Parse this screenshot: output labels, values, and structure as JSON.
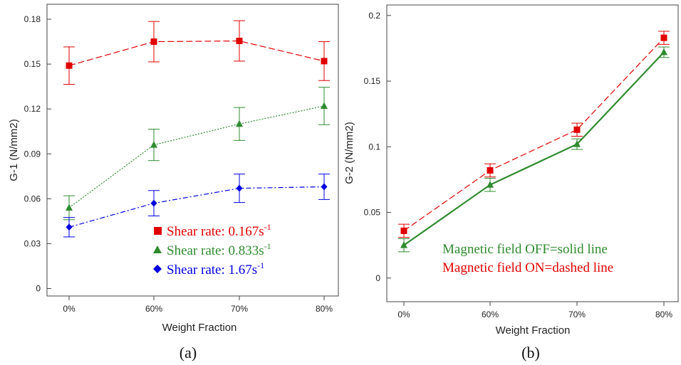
{
  "chart_data": [
    {
      "type": "line",
      "panel_label": "(a)",
      "categories": [
        "0%",
        "60%",
        "70%",
        "80%"
      ],
      "xlabel": "Weight Fraction",
      "ylabel": "G-1 (N/mm2)",
      "ylim": [
        -0.005,
        0.19
      ],
      "yticks": [
        "0",
        "0.03",
        "0.06",
        "0.09",
        "0.12",
        "0.15",
        "0.18"
      ],
      "grid": false,
      "legend_position": "bottom-right",
      "series": [
        {
          "name": "Shear rate: 0.167s",
          "superscript": "-1",
          "color": "#e00000",
          "marker": "square",
          "line": "dashed",
          "values": [
            0.149,
            0.165,
            0.1655,
            0.152
          ],
          "errors": [
            0.0125,
            0.0135,
            0.0135,
            0.013
          ]
        },
        {
          "name": "Shear rate: 0.833s",
          "superscript": "-1",
          "color": "#2e8b2e",
          "marker": "triangle",
          "line": "dotted",
          "values": [
            0.054,
            0.096,
            0.11,
            0.122
          ],
          "errors": [
            0.008,
            0.0105,
            0.011,
            0.0125
          ]
        },
        {
          "name": "Shear rate: 1.67s",
          "superscript": "-1",
          "color": "#0000e0",
          "marker": "diamond",
          "line": "dashdot",
          "values": [
            0.041,
            0.057,
            0.067,
            0.068
          ],
          "errors": [
            0.0065,
            0.0085,
            0.0095,
            0.0085
          ]
        }
      ]
    },
    {
      "type": "line",
      "panel_label": "(b)",
      "categories": [
        "0%",
        "60%",
        "70%",
        "80%"
      ],
      "xlabel": "Weight Fraction",
      "ylabel": "G-2 (N/mm2)",
      "ylim": [
        -0.018,
        0.208
      ],
      "yticks": [
        "0",
        "0.05",
        "0.1",
        "0.15",
        "0.2"
      ],
      "grid": false,
      "annotations": [
        {
          "text": "Magnetic field OFF=solid line",
          "color": "#2e8b2e"
        },
        {
          "text": "Magnetic field ON=dashed line",
          "color": "#e00000"
        }
      ],
      "series": [
        {
          "color": "#e00000",
          "marker": "square",
          "line": "dashed",
          "values": [
            0.036,
            0.082,
            0.113,
            0.183
          ],
          "errors": [
            0.005,
            0.005,
            0.005,
            0.005
          ]
        },
        {
          "color": "#2e8b2e",
          "marker": "triangle",
          "line": "solid",
          "values": [
            0.025,
            0.071,
            0.102,
            0.172
          ],
          "errors": [
            0.005,
            0.005,
            0.004,
            0.004
          ]
        }
      ]
    }
  ]
}
